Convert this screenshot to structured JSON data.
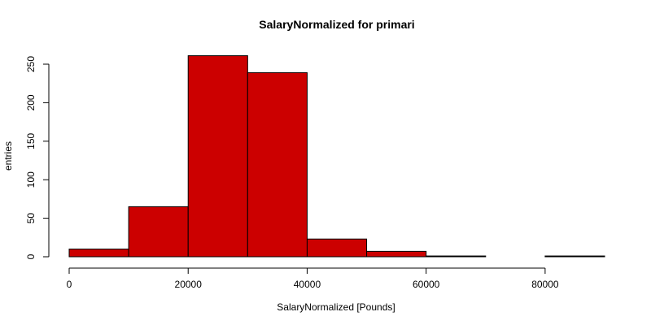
{
  "chart_data": {
    "type": "bar",
    "title": "SalaryNormalized for primari",
    "xlabel": "SalaryNormalized [Pounds]",
    "ylabel": "entries",
    "bins": [
      {
        "x0": 0,
        "x1": 10000,
        "value": 10
      },
      {
        "x0": 10000,
        "x1": 20000,
        "value": 65
      },
      {
        "x0": 20000,
        "x1": 30000,
        "value": 261
      },
      {
        "x0": 30000,
        "x1": 40000,
        "value": 239
      },
      {
        "x0": 40000,
        "x1": 50000,
        "value": 23
      },
      {
        "x0": 50000,
        "x1": 60000,
        "value": 7
      },
      {
        "x0": 60000,
        "x1": 70000,
        "value": 1
      },
      {
        "x0": 70000,
        "x1": 80000,
        "value": 0
      },
      {
        "x0": 80000,
        "x1": 90000,
        "value": 1
      }
    ],
    "xlim": [
      0,
      90000
    ],
    "ylim": [
      0,
      260
    ],
    "xticks": [
      0,
      20000,
      40000,
      60000,
      80000
    ],
    "xtick_labels": [
      "0",
      "20000",
      "40000",
      "60000",
      "80000"
    ],
    "yticks": [
      0,
      50,
      100,
      150,
      200,
      250
    ],
    "ytick_labels": [
      "0",
      "50",
      "100",
      "150",
      "200",
      "250"
    ],
    "bar_color": "#cc0000",
    "grid": false,
    "legend": "none"
  }
}
